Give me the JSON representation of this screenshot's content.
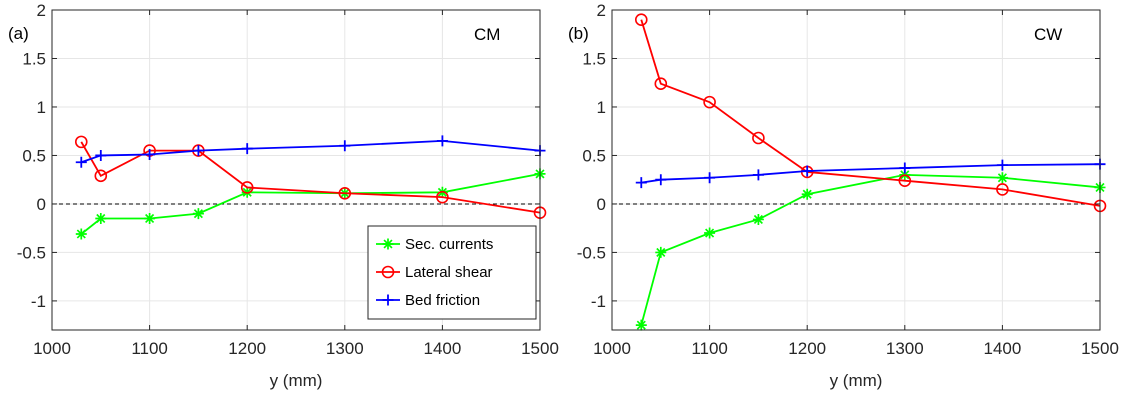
{
  "colors": {
    "sec_currents": "#00ff00",
    "lateral_shear": "#ff0000",
    "bed_friction": "#0000ff",
    "zero_line": "#000000",
    "grid": "#e6e6e6",
    "axes": "#262626"
  },
  "chart_data": [
    {
      "type": "line",
      "panel_tag": "(a)",
      "panel_label": "CM",
      "xlabel": "y (mm)",
      "ylabel": "",
      "xlim": [
        1000,
        1500
      ],
      "ylim": [
        -1.3,
        2
      ],
      "xticks": [
        "1000",
        "1100",
        "1200",
        "1300",
        "1400",
        "1500"
      ],
      "yticks": [
        "-1",
        "-0.5",
        "0",
        "0.5",
        "1",
        "1.5",
        "2"
      ],
      "grid": true,
      "reference_line": {
        "y": 0,
        "style": "dashed"
      },
      "legend": {
        "position": "bottom-right",
        "entries": [
          "Sec. currents",
          "Lateral shear",
          "Bed friction"
        ]
      },
      "series": [
        {
          "name": "Sec. currents",
          "marker": "asterisk",
          "color": "#00ff00",
          "x": [
            1030,
            1050,
            1100,
            1150,
            1200,
            1300,
            1400,
            1500
          ],
          "y": [
            -0.31,
            -0.15,
            -0.15,
            -0.1,
            0.12,
            0.11,
            0.12,
            0.31
          ]
        },
        {
          "name": "Lateral shear",
          "marker": "circle",
          "color": "#ff0000",
          "x": [
            1030,
            1050,
            1100,
            1150,
            1200,
            1300,
            1400,
            1500
          ],
          "y": [
            0.64,
            0.29,
            0.55,
            0.55,
            0.17,
            0.11,
            0.07,
            -0.09
          ]
        },
        {
          "name": "Bed friction",
          "marker": "plus",
          "color": "#0000ff",
          "x": [
            1030,
            1050,
            1100,
            1150,
            1200,
            1300,
            1400,
            1500
          ],
          "y": [
            0.43,
            0.5,
            0.51,
            0.55,
            0.57,
            0.6,
            0.65,
            0.55
          ]
        }
      ]
    },
    {
      "type": "line",
      "panel_tag": "(b)",
      "panel_label": "CW",
      "xlabel": "y (mm)",
      "ylabel": "",
      "xlim": [
        1000,
        1500
      ],
      "ylim": [
        -1.3,
        2
      ],
      "xticks": [
        "1000",
        "1100",
        "1200",
        "1300",
        "1400",
        "1500"
      ],
      "yticks": [
        "-1",
        "-0.5",
        "0",
        "0.5",
        "1",
        "1.5",
        "2"
      ],
      "grid": true,
      "reference_line": {
        "y": 0,
        "style": "dashed"
      },
      "series": [
        {
          "name": "Sec. currents",
          "marker": "asterisk",
          "color": "#00ff00",
          "x": [
            1030,
            1050,
            1100,
            1150,
            1200,
            1300,
            1400,
            1500
          ],
          "y": [
            -1.25,
            -0.5,
            -0.3,
            -0.16,
            0.1,
            0.3,
            0.27,
            0.17
          ]
        },
        {
          "name": "Lateral shear",
          "marker": "circle",
          "color": "#ff0000",
          "x": [
            1030,
            1050,
            1100,
            1150,
            1200,
            1300,
            1400,
            1500
          ],
          "y": [
            1.9,
            1.24,
            1.05,
            0.68,
            0.33,
            0.24,
            0.15,
            -0.02
          ]
        },
        {
          "name": "Bed friction",
          "marker": "plus",
          "color": "#0000ff",
          "x": [
            1030,
            1050,
            1100,
            1150,
            1200,
            1300,
            1400,
            1500
          ],
          "y": [
            0.22,
            0.25,
            0.27,
            0.3,
            0.34,
            0.37,
            0.4,
            0.41
          ]
        }
      ]
    }
  ]
}
